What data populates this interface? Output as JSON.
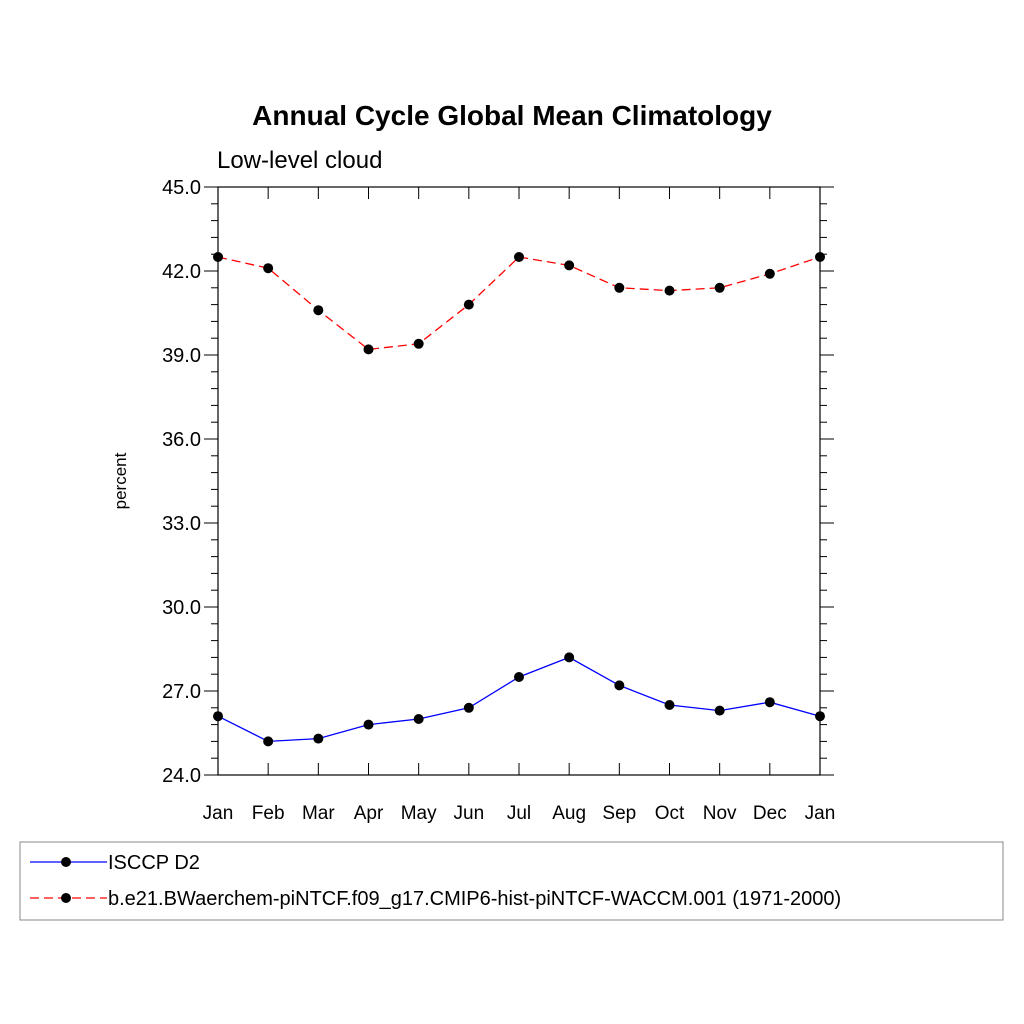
{
  "chart_data": {
    "type": "line",
    "title": "Annual Cycle Global Mean Climatology",
    "subtitle": "Low-level cloud",
    "ylabel": "percent",
    "xlabel": "",
    "ylim": [
      24.0,
      45.0
    ],
    "yticks": [
      "24.0",
      "27.0",
      "30.0",
      "33.0",
      "36.0",
      "39.0",
      "42.0",
      "45.0"
    ],
    "categories": [
      "Jan",
      "Feb",
      "Mar",
      "Apr",
      "May",
      "Jun",
      "Jul",
      "Aug",
      "Sep",
      "Oct",
      "Nov",
      "Dec",
      "Jan"
    ],
    "series": [
      {
        "name": "ISCCP D2",
        "color": "#0000ff",
        "dash": "solid",
        "marker": "circle",
        "values": [
          26.1,
          25.2,
          25.3,
          25.8,
          26.0,
          26.4,
          27.5,
          28.2,
          27.2,
          26.5,
          26.3,
          26.6,
          26.1
        ]
      },
      {
        "name": "b.e21.BWaerchem-piNTCF.f09_g17.CMIP6-hist-piNTCF-WACCM.001 (1971-2000)",
        "color": "#ff0000",
        "dash": "dashed",
        "marker": "circle",
        "values": [
          42.5,
          42.1,
          40.6,
          39.2,
          39.4,
          40.8,
          42.5,
          42.2,
          41.4,
          41.3,
          41.4,
          41.9,
          42.5
        ]
      }
    ],
    "grid": false,
    "legend_position": "bottom"
  }
}
